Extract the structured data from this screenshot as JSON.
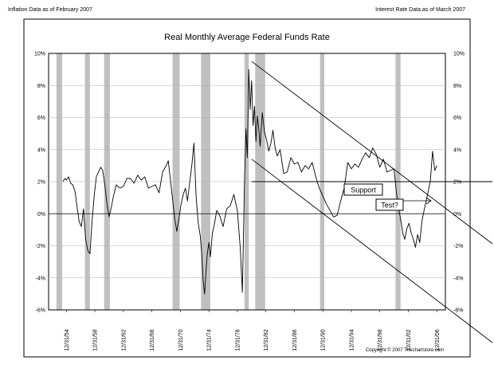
{
  "header": {
    "left": "Inflation Data as of February 2007",
    "right": "Interest Rate Data as of March 2007"
  },
  "copyright": "Copyright © 2007 Thechartstore.com",
  "chart_data": {
    "type": "line",
    "title": "Real Monthly Average Federal Funds Rate",
    "xlabel": "",
    "ylabel": "",
    "xlim": [
      1952.5,
      2008.2
    ],
    "ylim": [
      -6,
      10
    ],
    "y_ticks": [
      -6,
      -4,
      -2,
      0,
      2,
      4,
      6,
      8,
      10
    ],
    "y_tick_labels": [
      "-6%",
      "-4%",
      "-2%",
      "0%",
      "2%",
      "4%",
      "6%",
      "8%",
      "10%"
    ],
    "x_tick_labels": [
      "12/31/54",
      "12/31/58",
      "12/31/62",
      "12/31/66",
      "12/31/70",
      "12/31/74",
      "12/31/78",
      "12/31/82",
      "12/31/86",
      "12/31/90",
      "12/31/94",
      "12/31/98",
      "12/31/02",
      "12/31/06"
    ],
    "grid": true,
    "recessions": [
      [
        1953.6,
        1954.4
      ],
      [
        1957.6,
        1958.3
      ],
      [
        1960.3,
        1961.1
      ],
      [
        1969.9,
        1970.9
      ],
      [
        1973.9,
        1975.2
      ],
      [
        1980.0,
        1980.6
      ],
      [
        1981.5,
        1982.9
      ],
      [
        1990.6,
        1991.2
      ],
      [
        2001.2,
        2001.9
      ]
    ],
    "colors": {
      "line": "#000000",
      "recession": "#c0c0c0",
      "grid": "#b4b4b4"
    },
    "series": [
      {
        "x": [
          1954.5,
          1954.8,
          1955.0,
          1955.3,
          1955.6,
          1955.9,
          1956.2,
          1956.5,
          1956.8,
          1957.1,
          1957.4,
          1957.7,
          1958.0,
          1958.3,
          1958.6,
          1958.9,
          1959.2,
          1959.5,
          1959.8,
          1960.1,
          1960.4,
          1960.7,
          1961.0,
          1961.3,
          1961.6,
          1962.0,
          1962.5,
          1963.0,
          1963.5,
          1964.0,
          1964.5,
          1965.0,
          1965.5,
          1966.0,
          1966.5,
          1967.0,
          1967.5,
          1968.0,
          1968.5,
          1969.0,
          1969.3,
          1969.6,
          1969.9,
          1970.2,
          1970.5,
          1970.8,
          1971.1,
          1971.4,
          1971.7,
          1972.0,
          1972.3,
          1972.6,
          1972.9,
          1973.2,
          1973.5,
          1973.8,
          1974.0,
          1974.2,
          1974.4,
          1974.6,
          1974.8,
          1975.0,
          1975.2,
          1975.5,
          1975.8,
          1976.1,
          1976.5,
          1977.0,
          1977.5,
          1978.0,
          1978.5,
          1979.0,
          1979.4,
          1979.7,
          1980.0,
          1980.2,
          1980.4,
          1980.6,
          1980.8,
          1981.0,
          1981.2,
          1981.4,
          1981.6,
          1981.8,
          1982.0,
          1982.2,
          1982.5,
          1982.8,
          1983.1,
          1983.4,
          1983.7,
          1984.0,
          1984.3,
          1984.6,
          1985.0,
          1985.5,
          1986.0,
          1986.5,
          1987.0,
          1987.5,
          1988.0,
          1988.5,
          1989.0,
          1989.5,
          1990.0,
          1990.5,
          1991.0,
          1991.5,
          1992.0,
          1992.5,
          1993.0,
          1993.5,
          1994.0,
          1994.5,
          1995.0,
          1995.5,
          1996.0,
          1996.5,
          1997.0,
          1997.5,
          1998.0,
          1998.5,
          1999.0,
          1999.5,
          2000.0,
          2000.5,
          2001.0,
          2001.3,
          2001.6,
          2001.9,
          2002.2,
          2002.5,
          2002.8,
          2003.1,
          2003.4,
          2003.7,
          2004.0,
          2004.3,
          2004.6,
          2004.9,
          2005.2,
          2005.5,
          2005.8,
          2006.1,
          2006.4,
          2006.7,
          2007.0
        ],
        "values": [
          2.0,
          2.2,
          2.1,
          2.3,
          1.9,
          1.8,
          1.4,
          0.4,
          -0.5,
          -0.8,
          0.3,
          -1.6,
          -2.3,
          -2.5,
          -0.5,
          1.1,
          2.3,
          2.6,
          2.9,
          2.7,
          1.8,
          0.6,
          -0.2,
          0.4,
          1.1,
          1.8,
          1.6,
          1.7,
          2.2,
          2.2,
          1.9,
          2.4,
          2.1,
          2.3,
          1.6,
          1.7,
          1.8,
          1.3,
          2.6,
          3.0,
          3.3,
          2.1,
          0.9,
          -0.3,
          -1.1,
          -0.3,
          0.6,
          1.2,
          1.6,
          0.8,
          1.9,
          3.0,
          4.4,
          1.1,
          -0.6,
          -1.4,
          -2.5,
          -4.2,
          -5.0,
          -3.5,
          -2.4,
          -1.8,
          -2.7,
          -1.2,
          -0.6,
          0.2,
          -0.1,
          -0.8,
          0.3,
          0.5,
          1.2,
          0.2,
          -2.1,
          -4.9,
          2.1,
          5.3,
          3.5,
          9.0,
          6.5,
          8.3,
          5.5,
          6.7,
          4.5,
          6.1,
          5.3,
          4.2,
          6.3,
          5.1,
          4.6,
          3.9,
          4.4,
          5.2,
          4.1,
          3.6,
          4.0,
          2.5,
          2.6,
          3.5,
          3.1,
          3.2,
          2.6,
          3.0,
          2.8,
          3.2,
          2.3,
          1.6,
          1.1,
          0.6,
          0.2,
          -0.2,
          -0.1,
          0.8,
          1.6,
          3.2,
          2.8,
          3.1,
          2.9,
          3.4,
          3.8,
          3.5,
          4.1,
          3.7,
          2.9,
          3.4,
          2.6,
          2.7,
          2.8,
          1.4,
          0.4,
          -0.3,
          -1.2,
          -1.6,
          -0.9,
          -0.6,
          -1.2,
          -1.6,
          -2.1,
          -1.3,
          -1.8,
          -0.5,
          0.2,
          0.8,
          1.4,
          2.1,
          3.9,
          2.7,
          3.0
        ]
      }
    ],
    "annotations": {
      "support_label": "Support",
      "test_label": "Test?",
      "support_level": 2.0,
      "channel_upper": [
        [
          1981.0,
          9.5
        ],
        [
          2008.2,
          -0.9
        ]
      ],
      "channel_lower": [
        [
          1981.0,
          3.4
        ],
        [
          2008.2,
          -6.0
        ]
      ]
    }
  }
}
